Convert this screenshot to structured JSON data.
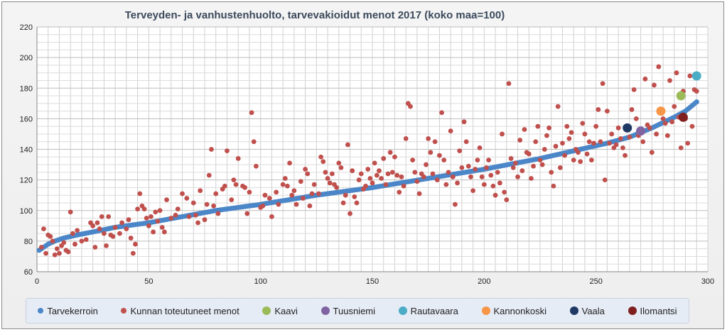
{
  "chart_data": {
    "type": "scatter",
    "title": "Terveyden- ja vanhustenhuolto, tarvevakioidut menot 2017 (koko maa=100)",
    "xlim": [
      0,
      300
    ],
    "ylim": [
      60,
      220
    ],
    "x_ticks": [
      0,
      50,
      100,
      150,
      200,
      250,
      300
    ],
    "y_ticks": [
      60,
      80,
      100,
      120,
      140,
      160,
      180,
      200,
      220
    ],
    "grid": true,
    "legend_position": "bottom",
    "series": [
      {
        "name": "Tarvekerroin",
        "color": "#4a86c8",
        "curve": [
          [
            1,
            74
          ],
          [
            3,
            76
          ],
          [
            5,
            78
          ],
          [
            8,
            80
          ],
          [
            12,
            82
          ],
          [
            18,
            84
          ],
          [
            25,
            86
          ],
          [
            35,
            89
          ],
          [
            50,
            92
          ],
          [
            65,
            96
          ],
          [
            80,
            100
          ],
          [
            100,
            104
          ],
          [
            125,
            110
          ],
          [
            150,
            115
          ],
          [
            175,
            121
          ],
          [
            200,
            127
          ],
          [
            225,
            134
          ],
          [
            240,
            139
          ],
          [
            255,
            144
          ],
          [
            265,
            148
          ],
          [
            275,
            154
          ],
          [
            285,
            161
          ],
          [
            290,
            165
          ],
          [
            295,
            171
          ]
        ]
      },
      {
        "name": "Kunnan toteutuneet menot",
        "color": "#c0504d",
        "points": [
          [
            2,
            76
          ],
          [
            3,
            88
          ],
          [
            4,
            72
          ],
          [
            5,
            84
          ],
          [
            6,
            83
          ],
          [
            7,
            80
          ],
          [
            8,
            71
          ],
          [
            9,
            75
          ],
          [
            10,
            72
          ],
          [
            11,
            77
          ],
          [
            12,
            79
          ],
          [
            13,
            74
          ],
          [
            14,
            73
          ],
          [
            15,
            99
          ],
          [
            16,
            85
          ],
          [
            17,
            78
          ],
          [
            18,
            87
          ],
          [
            20,
            80
          ],
          [
            22,
            81
          ],
          [
            24,
            92
          ],
          [
            25,
            90
          ],
          [
            26,
            76
          ],
          [
            27,
            92
          ],
          [
            28,
            88
          ],
          [
            29,
            96
          ],
          [
            30,
            85
          ],
          [
            31,
            77
          ],
          [
            32,
            96
          ],
          [
            33,
            84
          ],
          [
            34,
            83
          ],
          [
            35,
            89
          ],
          [
            37,
            85
          ],
          [
            38,
            92
          ],
          [
            40,
            88
          ],
          [
            41,
            94
          ],
          [
            42,
            82
          ],
          [
            43,
            72
          ],
          [
            44,
            78
          ],
          [
            45,
            101
          ],
          [
            46,
            111
          ],
          [
            47,
            103
          ],
          [
            48,
            101
          ],
          [
            49,
            95
          ],
          [
            50,
            90
          ],
          [
            51,
            96
          ],
          [
            52,
            86
          ],
          [
            53,
            99
          ],
          [
            54,
            93
          ],
          [
            55,
            100
          ],
          [
            56,
            89
          ],
          [
            57,
            86
          ],
          [
            58,
            107
          ],
          [
            60,
            95
          ],
          [
            62,
            97
          ],
          [
            63,
            101
          ],
          [
            65,
            111
          ],
          [
            67,
            108
          ],
          [
            68,
            96
          ],
          [
            70,
            105
          ],
          [
            71,
            97
          ],
          [
            72,
            92
          ],
          [
            73,
            113
          ],
          [
            75,
            94
          ],
          [
            76,
            104
          ],
          [
            77,
            123
          ],
          [
            78,
            140
          ],
          [
            79,
            103
          ],
          [
            80,
            111
          ],
          [
            81,
            98
          ],
          [
            83,
            114
          ],
          [
            84,
            116
          ],
          [
            85,
            139
          ],
          [
            87,
            107
          ],
          [
            88,
            120
          ],
          [
            89,
            117
          ],
          [
            90,
            134
          ],
          [
            92,
            116
          ],
          [
            93,
            115
          ],
          [
            94,
            98
          ],
          [
            95,
            112
          ],
          [
            96,
            164
          ],
          [
            97,
            145
          ],
          [
            98,
            129
          ],
          [
            100,
            102
          ],
          [
            101,
            103
          ],
          [
            102,
            110
          ],
          [
            104,
            108
          ],
          [
            105,
            96
          ],
          [
            107,
            112
          ],
          [
            108,
            104
          ],
          [
            110,
            117
          ],
          [
            111,
            121
          ],
          [
            112,
            116
          ],
          [
            113,
            131
          ],
          [
            114,
            110
          ],
          [
            115,
            113
          ],
          [
            116,
            104
          ],
          [
            118,
            119
          ],
          [
            119,
            108
          ],
          [
            120,
            127
          ],
          [
            121,
            124
          ],
          [
            122,
            103
          ],
          [
            123,
            111
          ],
          [
            124,
            117
          ],
          [
            126,
            111
          ],
          [
            127,
            135
          ],
          [
            128,
            132
          ],
          [
            129,
            125
          ],
          [
            130,
            121
          ],
          [
            131,
            118
          ],
          [
            132,
            124
          ],
          [
            133,
            117
          ],
          [
            134,
            115
          ],
          [
            135,
            131
          ],
          [
            136,
            128
          ],
          [
            137,
            105
          ],
          [
            138,
            110
          ],
          [
            139,
            143
          ],
          [
            140,
            98
          ],
          [
            141,
            126
          ],
          [
            142,
            109
          ],
          [
            143,
            105
          ],
          [
            144,
            120
          ],
          [
            145,
            124
          ],
          [
            146,
            114
          ],
          [
            147,
            116
          ],
          [
            148,
            127
          ],
          [
            149,
            121
          ],
          [
            150,
            118
          ],
          [
            151,
            131
          ],
          [
            152,
            123
          ],
          [
            153,
            126
          ],
          [
            154,
            121
          ],
          [
            155,
            134
          ],
          [
            156,
            117
          ],
          [
            157,
            124
          ],
          [
            158,
            138
          ],
          [
            159,
            125
          ],
          [
            160,
            135
          ],
          [
            161,
            123
          ],
          [
            162,
            112
          ],
          [
            163,
            122
          ],
          [
            164,
            116
          ],
          [
            165,
            147
          ],
          [
            166,
            170
          ],
          [
            167,
            168
          ],
          [
            168,
            133
          ],
          [
            169,
            125
          ],
          [
            170,
            119
          ],
          [
            171,
            111
          ],
          [
            172,
            124
          ],
          [
            173,
            122
          ],
          [
            174,
            130
          ],
          [
            175,
            147
          ],
          [
            176,
            138
          ],
          [
            177,
            124
          ],
          [
            178,
            145
          ],
          [
            179,
            120
          ],
          [
            180,
            136
          ],
          [
            181,
            164
          ],
          [
            182,
            133
          ],
          [
            183,
            117
          ],
          [
            184,
            125
          ],
          [
            185,
            152
          ],
          [
            186,
            122
          ],
          [
            187,
            104
          ],
          [
            188,
            118
          ],
          [
            189,
            139
          ],
          [
            190,
            128
          ],
          [
            191,
            158
          ],
          [
            192,
            145
          ],
          [
            193,
            129
          ],
          [
            194,
            122
          ],
          [
            195,
            113
          ],
          [
            196,
            127
          ],
          [
            197,
            133
          ],
          [
            198,
            141
          ],
          [
            199,
            122
          ],
          [
            200,
            117
          ],
          [
            201,
            128
          ],
          [
            202,
            133
          ],
          [
            203,
            123
          ],
          [
            204,
            116
          ],
          [
            205,
            110
          ],
          [
            206,
            125
          ],
          [
            207,
            118
          ],
          [
            208,
            150
          ],
          [
            209,
            112
          ],
          [
            210,
            107
          ],
          [
            211,
            183
          ],
          [
            212,
            134
          ],
          [
            213,
            128
          ],
          [
            214,
            131
          ],
          [
            215,
            122
          ],
          [
            216,
            146
          ],
          [
            217,
            126
          ],
          [
            218,
            153
          ],
          [
            219,
            138
          ],
          [
            220,
            137
          ],
          [
            221,
            121
          ],
          [
            222,
            129
          ],
          [
            223,
            145
          ],
          [
            224,
            155
          ],
          [
            225,
            133
          ],
          [
            226,
            130
          ],
          [
            227,
            140
          ],
          [
            228,
            149
          ],
          [
            229,
            154
          ],
          [
            230,
            125
          ],
          [
            231,
            116
          ],
          [
            232,
            142
          ],
          [
            233,
            168
          ],
          [
            234,
            128
          ],
          [
            235,
            144
          ],
          [
            236,
            136
          ],
          [
            237,
            155
          ],
          [
            238,
            147
          ],
          [
            239,
            151
          ],
          [
            240,
            133
          ],
          [
            241,
            140
          ],
          [
            242,
            138
          ],
          [
            243,
            132
          ],
          [
            244,
            157
          ],
          [
            245,
            150
          ],
          [
            246,
            137
          ],
          [
            247,
            145
          ],
          [
            248,
            133
          ],
          [
            249,
            144
          ],
          [
            250,
            155
          ],
          [
            251,
            166
          ],
          [
            252,
            145
          ],
          [
            253,
            183
          ],
          [
            254,
            120
          ],
          [
            255,
            165
          ],
          [
            256,
            144
          ],
          [
            257,
            150
          ],
          [
            258,
            141
          ],
          [
            259,
            143
          ],
          [
            260,
            154
          ],
          [
            261,
            147
          ],
          [
            262,
            141
          ],
          [
            263,
            136
          ],
          [
            264,
            155
          ],
          [
            265,
            148
          ],
          [
            266,
            166
          ],
          [
            267,
            179
          ],
          [
            268,
            160
          ],
          [
            269,
            149
          ],
          [
            270,
            153
          ],
          [
            271,
            145
          ],
          [
            272,
            186
          ],
          [
            273,
            156
          ],
          [
            274,
            154
          ],
          [
            275,
            138
          ],
          [
            276,
            182
          ],
          [
            277,
            150
          ],
          [
            278,
            194
          ],
          [
            279,
            165
          ],
          [
            280,
            160
          ],
          [
            281,
            157
          ],
          [
            282,
            149
          ],
          [
            283,
            185
          ],
          [
            284,
            158
          ],
          [
            285,
            168
          ],
          [
            286,
            190
          ],
          [
            287,
            161
          ],
          [
            288,
            141
          ],
          [
            289,
            178
          ],
          [
            290,
            160
          ],
          [
            291,
            144
          ],
          [
            292,
            188
          ],
          [
            293,
            155
          ],
          [
            294,
            179
          ],
          [
            295,
            178
          ]
        ]
      },
      {
        "name": "Kaavi",
        "color": "#9bbb59",
        "points": [
          [
            288,
            175
          ]
        ]
      },
      {
        "name": "Tuusniemi",
        "color": "#8064a2",
        "points": [
          [
            270,
            152
          ]
        ]
      },
      {
        "name": "Rautavaara",
        "color": "#4bacc6",
        "points": [
          [
            295,
            188
          ]
        ]
      },
      {
        "name": "Kannonkoski",
        "color": "#f79646",
        "points": [
          [
            279,
            165
          ]
        ]
      },
      {
        "name": "Vaala",
        "color": "#1f3864",
        "points": [
          [
            264,
            154
          ]
        ]
      },
      {
        "name": "Ilomantsi",
        "color": "#7f1f1f",
        "points": [
          [
            289,
            161
          ]
        ]
      }
    ]
  }
}
